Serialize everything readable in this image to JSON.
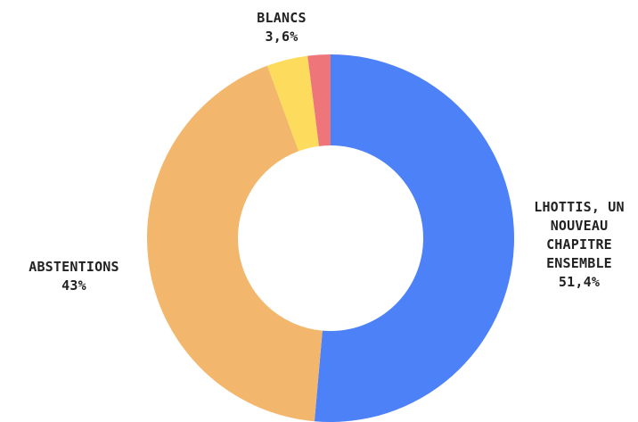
{
  "chart_data": {
    "type": "pie",
    "donut": true,
    "legend": "none",
    "slices": [
      {
        "name": "LHOTTIS, UN NOUVEAU CHAPITRE ENSEMBLE",
        "label_lines": [
          "LHOTTIS, UN",
          "NOUVEAU",
          "CHAPITRE",
          "ENSEMBLE"
        ],
        "value": 51.4,
        "value_label": "51,4%",
        "color": "#4c81f7"
      },
      {
        "name": "ABSTENTIONS",
        "label_lines": [
          "ABSTENTIONS"
        ],
        "value": 43,
        "value_label": "43%",
        "color": "#f2b76d"
      },
      {
        "name": "BLANCS",
        "label_lines": [
          "BLANCS"
        ],
        "value": 3.6,
        "value_label": "3,6%",
        "color": "#fddb5c"
      },
      {
        "name": "",
        "label_lines": [],
        "value": 2,
        "value_label": "",
        "color": "#ee767a"
      }
    ]
  }
}
